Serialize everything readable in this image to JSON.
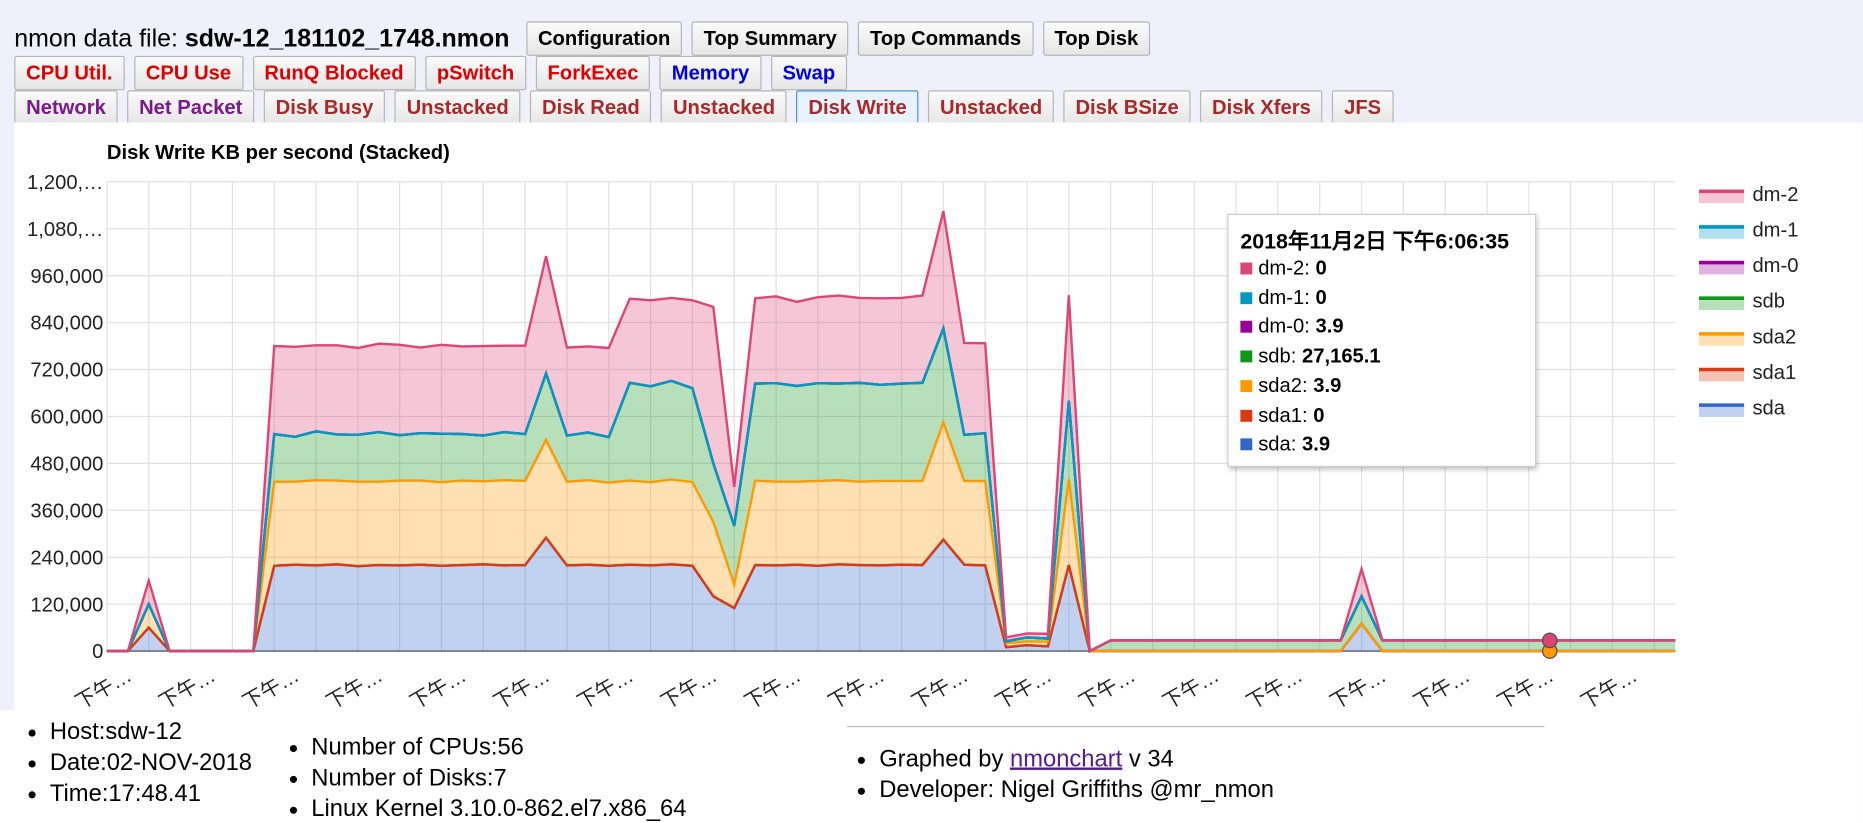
{
  "header": {
    "label": "nmon data file:",
    "filename": "sdw-12_181102_1748.nmon",
    "buttons": [
      [
        {
          "text": "Configuration",
          "color": "#000000"
        },
        {
          "text": "Top Summary",
          "color": "#000000"
        },
        {
          "text": "Top Commands",
          "color": "#000000"
        },
        {
          "text": "Top Disk",
          "color": "#000000"
        }
      ],
      [
        {
          "text": "CPU Util.",
          "color": "#e00000"
        },
        {
          "text": "CPU Use",
          "color": "#e00000"
        },
        {
          "text": "RunQ Blocked",
          "color": "#e00000"
        },
        {
          "text": "pSwitch",
          "color": "#e00000"
        },
        {
          "text": "ForkExec",
          "color": "#e00000"
        },
        {
          "text": "Memory",
          "color": "#0000e0"
        },
        {
          "text": "Swap",
          "color": "#0000e0"
        }
      ],
      [
        {
          "text": "Network",
          "color": "#7a1a8a"
        },
        {
          "text": "Net Packet",
          "color": "#7a1a8a"
        },
        {
          "text": "Disk Busy",
          "color": "#a52a2a"
        },
        {
          "text": "Unstacked",
          "color": "#a52a2a"
        },
        {
          "text": "Disk Read",
          "color": "#a52a2a"
        },
        {
          "text": "Unstacked",
          "color": "#a52a2a"
        },
        {
          "text": "Disk Write",
          "color": "#a52a2a",
          "selected": true
        },
        {
          "text": "Unstacked",
          "color": "#a52a2a"
        },
        {
          "text": "Disk BSize",
          "color": "#a52a2a"
        },
        {
          "text": "Disk Xfers",
          "color": "#a52a2a"
        },
        {
          "text": "JFS",
          "color": "#a52a2a"
        }
      ]
    ]
  },
  "chart_data": {
    "type": "stacked-area",
    "title": "Disk Write KB per second (Stacked)",
    "categories": [
      "下午…",
      null,
      null,
      null,
      "下午…",
      null,
      null,
      null,
      "下午…",
      null,
      null,
      null,
      "下午…",
      null,
      null,
      null,
      "下午…",
      null,
      null,
      null,
      "下午…",
      null,
      null,
      null,
      "下午…",
      null,
      null,
      null,
      "下午…",
      null,
      null,
      null,
      "下午…",
      null,
      null,
      null,
      "下午…",
      null,
      null,
      null,
      "下午…",
      null,
      null,
      null,
      "下午…",
      null,
      null,
      null,
      "下午…",
      null,
      null,
      null,
      "下午…",
      null,
      null,
      null,
      "下午…",
      null,
      null,
      null,
      "下午…",
      null,
      null,
      null,
      "下午…",
      null,
      null,
      null,
      "下午…",
      null,
      null,
      null,
      "下午…",
      null,
      null,
      null
    ],
    "ylim": [
      0,
      1200000
    ],
    "yticks": [
      0,
      {
        "value": 120000,
        "label": "120,000"
      },
      {
        "value": 240000,
        "label": "240,000"
      },
      {
        "value": 360000,
        "label": "360,000"
      },
      {
        "value": 480000,
        "label": "480,000"
      },
      {
        "value": 600000,
        "label": "600,000"
      },
      {
        "value": 720000,
        "label": "720,000"
      },
      {
        "value": 840000,
        "label": "840,000"
      },
      {
        "value": 960000,
        "label": "960,000"
      },
      {
        "value": 1080000,
        "label": "1,080,…"
      },
      {
        "value": 1200000,
        "label": "1,200,…"
      }
    ],
    "grid": true,
    "series": [
      {
        "name": "sda",
        "color": "#3366cc",
        "values": [
          0,
          0,
          60000,
          0,
          0,
          0,
          0,
          0,
          218000,
          221000,
          219000,
          222000,
          217000,
          220000,
          219000,
          221000,
          218000,
          220000,
          222000,
          219000,
          220000,
          290000,
          219000,
          221000,
          218000,
          221000,
          219000,
          222000,
          218000,
          140000,
          110000,
          220000,
          219000,
          221000,
          218000,
          222000,
          220000,
          219000,
          221000,
          220000,
          285000,
          221000,
          219000,
          10000,
          15000,
          12000,
          220000,
          0,
          3.9,
          3.9,
          3.9,
          3.9,
          3.9,
          3.9,
          3.9,
          3.9,
          3.9,
          3.9,
          3.9,
          3.9,
          70000,
          3.9,
          3.9,
          3.9,
          3.9,
          3.9,
          3.9,
          3.9,
          3.9,
          3.9,
          3.9,
          3.9,
          3.9,
          3.9,
          3.9,
          3.9
        ]
      },
      {
        "name": "sda1",
        "color": "#dc3912",
        "values": [
          0,
          0,
          0,
          0,
          0,
          0,
          0,
          0,
          0,
          0,
          0,
          0,
          0,
          0,
          0,
          0,
          0,
          0,
          0,
          0,
          0,
          0,
          0,
          0,
          0,
          0,
          0,
          0,
          0,
          0,
          0,
          0,
          0,
          0,
          0,
          0,
          0,
          0,
          0,
          0,
          0,
          0,
          0,
          0,
          0,
          0,
          0,
          0,
          0,
          0,
          0,
          0,
          0,
          0,
          0,
          0,
          0,
          0,
          0,
          0,
          0,
          0,
          0,
          0,
          0,
          0,
          0,
          0,
          0,
          0,
          0,
          0,
          0,
          0,
          0,
          0
        ]
      },
      {
        "name": "sda2",
        "color": "#ff9900",
        "values": [
          0,
          0,
          60000,
          0,
          0,
          0,
          0,
          0,
          215000,
          212000,
          218000,
          214000,
          216000,
          213000,
          217000,
          215000,
          214000,
          216000,
          212000,
          218000,
          215000,
          250000,
          214000,
          216000,
          213000,
          215000,
          213000,
          217000,
          214000,
          190000,
          60000,
          216000,
          214000,
          212000,
          217000,
          215000,
          213000,
          216000,
          214000,
          215000,
          300000,
          214000,
          216000,
          10000,
          10000,
          12000,
          220000,
          0,
          3.9,
          3.9,
          3.9,
          3.9,
          3.9,
          3.9,
          3.9,
          3.9,
          3.9,
          3.9,
          3.9,
          3.9,
          3.9,
          3.9,
          3.9,
          3.9,
          3.9,
          3.9,
          3.9,
          3.9,
          3.9,
          3.9,
          3.9,
          3.9,
          3.9,
          3.9,
          3.9,
          3.9
        ]
      },
      {
        "name": "sdb",
        "color": "#109618",
        "values": [
          0,
          0,
          0,
          0,
          0,
          0,
          0,
          0,
          122000,
          115000,
          125000,
          118000,
          120000,
          127000,
          116000,
          121000,
          124000,
          119000,
          117000,
          123000,
          120000,
          170000,
          118000,
          122000,
          116000,
          250000,
          245000,
          252000,
          240000,
          150000,
          150000,
          248000,
          252000,
          245000,
          250000,
          247000,
          253000,
          246000,
          249000,
          251000,
          240000,
          118000,
          122000,
          5000,
          10000,
          8000,
          200000,
          0,
          27200,
          27150,
          27180,
          27165.1,
          27170,
          27160,
          27190,
          27140,
          27165.1,
          27175,
          27155,
          27165.1,
          70000,
          27180,
          27160,
          27170,
          27150,
          27165.1,
          27185,
          27160,
          27170,
          27165.1,
          27175,
          27155,
          27170,
          27165.1,
          27180,
          27160
        ]
      },
      {
        "name": "dm-0",
        "color": "#990099",
        "values": [
          0,
          0,
          0,
          0,
          0,
          0,
          0,
          0,
          0,
          0,
          0,
          0,
          0,
          0,
          0,
          0,
          0,
          0,
          0,
          0,
          0,
          0,
          0,
          0,
          0,
          0,
          0,
          0,
          0,
          0,
          0,
          0,
          0,
          0,
          0,
          0,
          0,
          0,
          0,
          0,
          0,
          0,
          0,
          0,
          0,
          0,
          0,
          0,
          3.9,
          3.9,
          3.9,
          3.9,
          3.9,
          3.9,
          3.9,
          3.9,
          3.9,
          3.9,
          3.9,
          3.9,
          3.9,
          3.9,
          3.9,
          3.9,
          3.9,
          3.9,
          3.9,
          3.9,
          3.9,
          3.9,
          3.9,
          3.9,
          3.9,
          3.9,
          3.9,
          3.9
        ]
      },
      {
        "name": "dm-1",
        "color": "#0099c6",
        "values": [
          0,
          0,
          0,
          0,
          0,
          0,
          0,
          0,
          0,
          0,
          0,
          0,
          0,
          0,
          0,
          0,
          0,
          0,
          0,
          0,
          0,
          0,
          0,
          0,
          0,
          0,
          0,
          0,
          0,
          0,
          0,
          0,
          0,
          0,
          0,
          0,
          0,
          0,
          0,
          0,
          0,
          0,
          0,
          0,
          0,
          0,
          0,
          0,
          0,
          0,
          0,
          0,
          0,
          0,
          0,
          0,
          0,
          0,
          0,
          0,
          0,
          0,
          0,
          0,
          0,
          0,
          0,
          0,
          0,
          0,
          0,
          0,
          0,
          0,
          0,
          0
        ]
      },
      {
        "name": "dm-2",
        "color": "#dd4477",
        "values": [
          0,
          0,
          60000,
          0,
          0,
          0,
          0,
          0,
          225000,
          230000,
          220000,
          228000,
          222000,
          226000,
          231000,
          219000,
          227000,
          224000,
          229000,
          221000,
          226000,
          300000,
          225000,
          220000,
          228000,
          215000,
          220000,
          212000,
          225000,
          400000,
          100000,
          218000,
          222000,
          215000,
          220000,
          225000,
          217000,
          221000,
          219000,
          223000,
          300000,
          235000,
          230000,
          10000,
          10000,
          12000,
          270000,
          0,
          0,
          0,
          0,
          0,
          0,
          0,
          0,
          0,
          0,
          0,
          0,
          0,
          70000,
          0,
          0,
          0,
          0,
          0,
          0,
          0,
          0,
          0,
          0,
          0,
          0,
          0,
          0,
          0
        ]
      }
    ]
  },
  "tooltip": {
    "title": "2018年11月2日 下午6:06:35",
    "items": [
      {
        "name": "dm-2:",
        "value": "0"
      },
      {
        "name": "dm-1:",
        "value": "0"
      },
      {
        "name": "dm-0:",
        "value": "3.9"
      },
      {
        "name": "sdb:",
        "value": "27,165.1"
      },
      {
        "name": "sda2:",
        "value": "3.9"
      },
      {
        "name": "sda1:",
        "value": "0"
      },
      {
        "name": "sda:",
        "value": "3.9"
      }
    ]
  },
  "footer": {
    "col1": [
      "Host:sdw-12",
      "Date:02-NOV-2018",
      "Time:17:48.41"
    ],
    "col2": [
      "Number of CPUs:56",
      "Number of Disks:7",
      "Linux Kernel 3.10.0-862.el7.x86_64"
    ],
    "col3": {
      "graphed": "Graphed by",
      "link": "nmonchart",
      "version": "v 34",
      "developer": "Developer: Nigel Griffiths @mr_nmon"
    }
  }
}
